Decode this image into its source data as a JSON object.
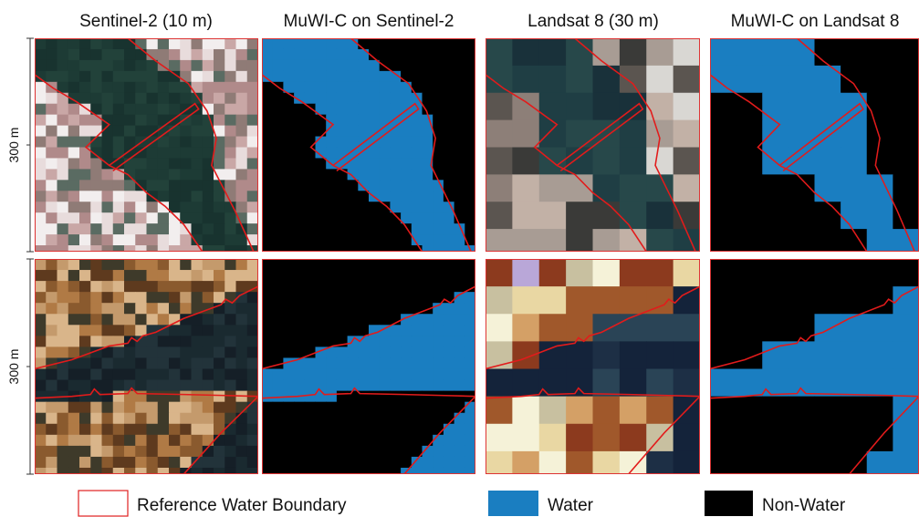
{
  "columns": [
    "Sentinel-2 (10 m)",
    "MuWI-C on Sentinel-2",
    "Landsat 8 (30 m)",
    "MuWI-C on Landsat 8"
  ],
  "rows": [
    {
      "scale": "300 m"
    },
    {
      "scale": "300 m"
    }
  ],
  "legend": [
    "Reference Water Boundary",
    "Water",
    "Non-Water"
  ]
}
